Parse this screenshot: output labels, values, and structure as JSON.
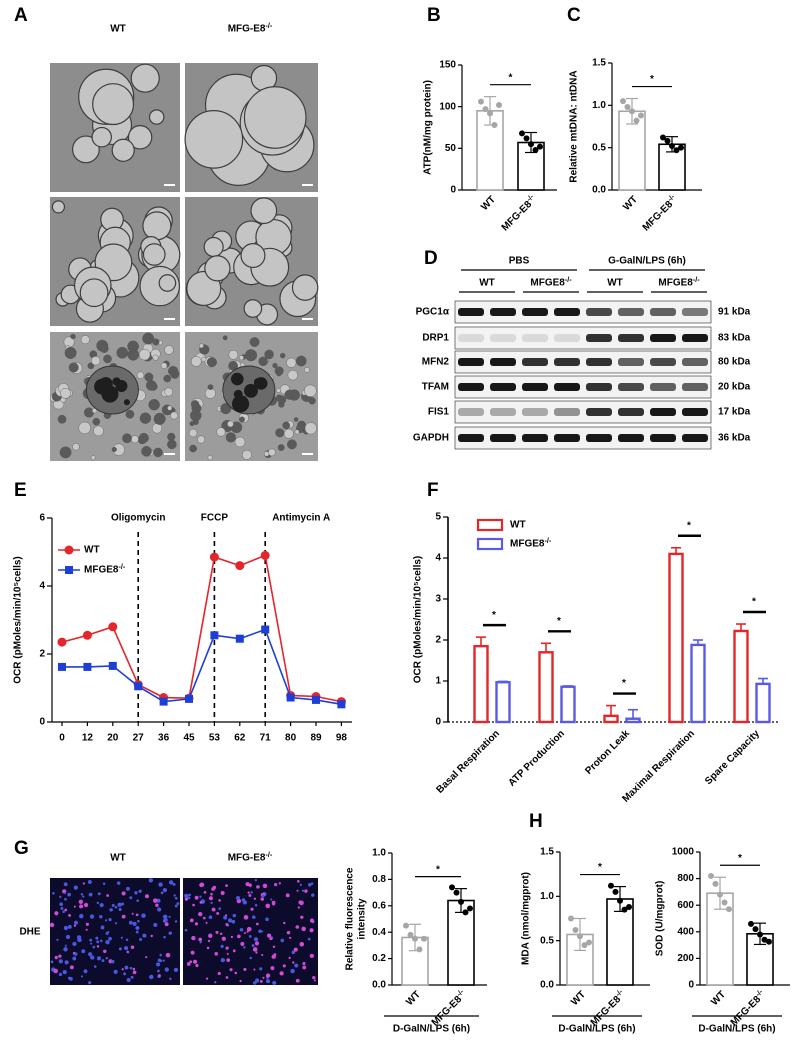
{
  "panel_letters": [
    "A",
    "B",
    "C",
    "D",
    "E",
    "F",
    "G",
    "H"
  ],
  "figure_a": {
    "columns": [
      "WT",
      "MFG-E8-/-"
    ]
  },
  "blot": {
    "headers": [
      "PBS",
      "G-GalN/LPS (6h)"
    ],
    "groups": [
      "WT",
      "MFGE8-/-",
      "WT",
      "MFGE8-/-"
    ],
    "rows": [
      {
        "protein": "PGC1α",
        "size": "91 kDa"
      },
      {
        "protein": "DRP1",
        "size": "83 kDa"
      },
      {
        "protein": "MFN2",
        "size": "80 kDa"
      },
      {
        "protein": "TFAM",
        "size": "20 kDa"
      },
      {
        "protein": "FIS1",
        "size": "17 kDa"
      },
      {
        "protein": "GAPDH",
        "size": "36 kDa"
      }
    ]
  },
  "figure_g": {
    "columns": [
      "WT",
      "MFG-E8-/-"
    ],
    "row_label": "DHE"
  },
  "chart_data": [
    {
      "type": "bar",
      "ylabel": "ATP(nM/mg protein)",
      "categories": [
        "WT",
        "MFG-E8-/-"
      ],
      "values": [
        95,
        57
      ],
      "errors": [
        17,
        12
      ],
      "points": [
        [
          106,
          97,
          92,
          78,
          102
        ],
        [
          68,
          62,
          55,
          48,
          52
        ]
      ],
      "colors": [
        "#a6a6a6",
        "#000000"
      ],
      "ylim": [
        0,
        150
      ],
      "yticks": [
        0,
        50,
        100,
        150
      ],
      "significance": "*"
    },
    {
      "type": "bar",
      "ylabel": "Relative mtDNA: ntDNA",
      "categories": [
        "WT",
        "MFG-E8-/-"
      ],
      "values": [
        0.93,
        0.54
      ],
      "errors": [
        0.15,
        0.09
      ],
      "points": [
        [
          1.05,
          0.98,
          0.93,
          0.82,
          0.88
        ],
        [
          0.62,
          0.58,
          0.52,
          0.47,
          0.5
        ]
      ],
      "colors": [
        "#a6a6a6",
        "#000000"
      ],
      "ylim": [
        0,
        1.5
      ],
      "yticks": [
        {
          "value": 0,
          "label": "0.0"
        },
        0.5,
        {
          "value": 1,
          "label": "1.0"
        },
        1.5
      ],
      "significance": "*"
    },
    {
      "type": "line",
      "ylabel": "OCR (pMoles/min/10⁵cells)",
      "categories": [
        "0",
        "12",
        "20",
        "27",
        "36",
        "45",
        "53",
        "62",
        "71",
        "80",
        "89",
        "98"
      ],
      "series": [
        {
          "name": "WT",
          "color": "#e4262b",
          "marker": "circle",
          "values": [
            2.35,
            2.55,
            2.8,
            1.1,
            0.72,
            0.7,
            4.85,
            4.6,
            4.9,
            0.78,
            0.75,
            0.6
          ]
        },
        {
          "name": "MFGE8-/-",
          "color": "#1d3fd8",
          "marker": "square",
          "values": [
            1.62,
            1.62,
            1.65,
            1.05,
            0.6,
            0.68,
            2.55,
            2.45,
            2.72,
            0.72,
            0.65,
            0.52
          ]
        }
      ],
      "annotations": [
        {
          "text": "Oligomycin",
          "x": "27"
        },
        {
          "text": "FCCP",
          "x": "53"
        },
        {
          "text": "Antimycin A",
          "x": "71"
        }
      ],
      "ylim": [
        0,
        6
      ],
      "yticks": [
        0,
        2,
        4,
        6
      ],
      "legend": "upper left"
    },
    {
      "type": "grouped_bar",
      "ylabel": "OCR (pMoles/min/10⁵cells)",
      "categories": [
        "Basal Respiration",
        "ATP Production",
        "Proton Leak",
        "Maximal Respiration",
        "Spare Capacity"
      ],
      "series": [
        {
          "name": "WT",
          "color": "#e4262b",
          "values": [
            1.85,
            1.7,
            0.15,
            4.1,
            2.22
          ],
          "errors": [
            0.22,
            0.22,
            0.25,
            0.15,
            0.17
          ]
        },
        {
          "name": "MFGE8-/-",
          "color": "#5a5ae6",
          "values": [
            0.97,
            0.86,
            0.08,
            1.88,
            0.93
          ],
          "errors": [
            0.02,
            0.02,
            0.22,
            0.12,
            0.13
          ]
        }
      ],
      "significance": [
        "*",
        "*",
        "*",
        "*",
        "*"
      ],
      "ylim": [
        0,
        5
      ],
      "yticks": [
        0,
        1,
        2,
        3,
        4,
        5
      ],
      "legend": "upper left"
    },
    {
      "type": "bar",
      "ylabel": [
        "Relative fluorescence",
        "intensity"
      ],
      "categories": [
        "WT",
        "MFG-E8-/-"
      ],
      "values": [
        0.36,
        0.64
      ],
      "errors": [
        0.1,
        0.09
      ],
      "points": [
        [
          0.45,
          0.38,
          0.35,
          0.27,
          0.35
        ],
        [
          0.74,
          0.7,
          0.63,
          0.55,
          0.58
        ]
      ],
      "colors": [
        "#a6a6a6",
        "#000000"
      ],
      "ylim": [
        0,
        1
      ],
      "yticks": [
        {
          "value": 0,
          "label": "0.0"
        },
        0.2,
        0.4,
        0.6,
        0.8,
        {
          "value": 1,
          "label": "1.0"
        }
      ],
      "significance": "*",
      "group_label": "D-GalN/LPS (6h)"
    },
    {
      "type": "bar",
      "ylabel": "MDA (nmol/mgprot)",
      "categories": [
        "WT",
        "MFG-E8-/-"
      ],
      "values": [
        0.57,
        0.97
      ],
      "errors": [
        0.18,
        0.14
      ],
      "points": [
        [
          0.75,
          0.62,
          0.55,
          0.45,
          0.48
        ],
        [
          1.12,
          1.05,
          0.95,
          0.85,
          0.88
        ]
      ],
      "colors": [
        "#a6a6a6",
        "#000000"
      ],
      "ylim": [
        0,
        1.5
      ],
      "yticks": [
        {
          "value": 0,
          "label": "0.0"
        },
        0.5,
        {
          "value": 1,
          "label": "1.0"
        },
        1.5
      ],
      "significance": "*",
      "group_label": "D-GalN/LPS (6h)"
    },
    {
      "type": "bar",
      "ylabel": "SOD (U/mgprot)",
      "categories": [
        "WT",
        "MFG-E8-/-"
      ],
      "values": [
        690,
        385
      ],
      "errors": [
        120,
        80
      ],
      "points": [
        [
          820,
          760,
          680,
          620,
          570
        ],
        [
          460,
          420,
          380,
          340,
          325
        ]
      ],
      "colors": [
        "#a6a6a6",
        "#000000"
      ],
      "ylim": [
        0,
        1000
      ],
      "yticks": [
        0,
        200,
        400,
        600,
        800,
        1000
      ],
      "significance": "*",
      "group_label": "D-GalN/LPS (6h)"
    }
  ]
}
